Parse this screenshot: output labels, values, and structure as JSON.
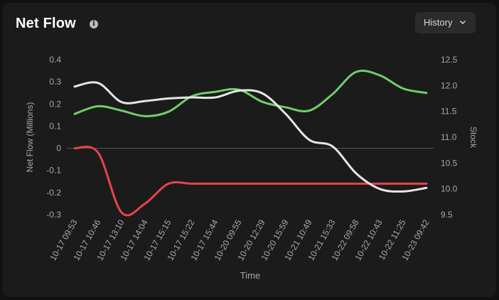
{
  "header": {
    "title": "Net Flow",
    "history_label": "History"
  },
  "chart_data": {
    "type": "line",
    "xlabel": "Time",
    "ylabel_left": "Net Flow (Millions)",
    "ylabel_right": "Stock",
    "x_ticks": [
      "10-17 09:53",
      "10-17 10:46",
      "10-17 13:10",
      "10-17 14:04",
      "10-17 15:15",
      "10-17 15:22",
      "10-17 15:44",
      "10-20 09:55",
      "10-20 12:29",
      "10-20 15:59",
      "10-21 10:49",
      "10-21 15:33",
      "10-22 09:58",
      "10-22 10:43",
      "10-22 11:25",
      "10-23 09:42"
    ],
    "y_left_ticks": [
      0.4,
      0.3,
      0.2,
      0.1,
      0,
      -0.1,
      -0.2,
      -0.3
    ],
    "y_left_range": [
      -0.3,
      0.4
    ],
    "y_right_ticks": [
      12.5,
      12.0,
      11.5,
      11.0,
      10.5,
      10.0,
      9.5
    ],
    "y_right_range": [
      9.5,
      12.5
    ],
    "grid": "zero-line only",
    "colors": {
      "green": "#6ecf68",
      "red": "#e8434b",
      "white": "#e6e6e6",
      "zero_line": "#555555",
      "tick": "#a8a8a8"
    },
    "series": [
      {
        "color": "green",
        "axis": "left",
        "x": [
          0,
          1,
          2,
          3,
          4,
          5,
          6,
          7,
          8,
          9,
          10,
          11,
          12,
          13,
          14,
          15
        ],
        "values": [
          0.155,
          0.19,
          0.17,
          0.145,
          0.165,
          0.235,
          0.255,
          0.265,
          0.21,
          0.185,
          0.17,
          0.245,
          0.345,
          0.33,
          0.27,
          0.25
        ]
      },
      {
        "color": "red",
        "axis": "left",
        "x": [
          0,
          1,
          2,
          3,
          4,
          5,
          6,
          7,
          8,
          9,
          10,
          11,
          12,
          13,
          14,
          15
        ],
        "values": [
          0,
          -0.02,
          -0.29,
          -0.25,
          -0.16,
          -0.16,
          -0.16,
          -0.16,
          -0.16,
          -0.16,
          -0.16,
          -0.16,
          -0.16,
          -0.16,
          -0.16,
          -0.16
        ]
      },
      {
        "color": "white",
        "axis": "right",
        "x": [
          0,
          1,
          2,
          3,
          4,
          5,
          6,
          7,
          8,
          9,
          10,
          11,
          12,
          13,
          14,
          15
        ],
        "values": [
          11.98,
          12.05,
          11.68,
          11.7,
          11.75,
          11.77,
          11.77,
          11.9,
          11.85,
          11.45,
          10.95,
          10.82,
          10.3,
          10.0,
          9.95,
          10.02
        ]
      }
    ]
  }
}
